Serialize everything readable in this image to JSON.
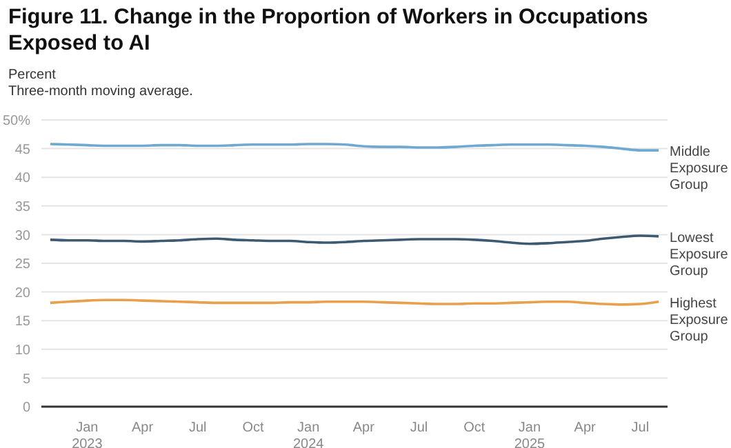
{
  "chart_data": {
    "type": "line",
    "title": "Figure 11. Change in the Proportion of Workers in Occupations Exposed to AI",
    "subtitle": "Three-month moving average.",
    "ylabel": "Percent",
    "x": [
      "2022-11",
      "2022-12",
      "2023-01",
      "2023-02",
      "2023-03",
      "2023-04",
      "2023-05",
      "2023-06",
      "2023-07",
      "2023-08",
      "2023-09",
      "2023-10",
      "2023-11",
      "2023-12",
      "2024-01",
      "2024-02",
      "2024-03",
      "2024-04",
      "2024-05",
      "2024-06",
      "2024-07",
      "2024-08",
      "2024-09",
      "2024-10",
      "2024-11",
      "2024-12",
      "2025-01",
      "2025-02",
      "2025-03",
      "2025-04",
      "2025-05",
      "2025-06",
      "2025-07",
      "2025-08"
    ],
    "series": [
      {
        "name": "Middle Exposure Group",
        "color": "#6fa8d0",
        "values": [
          45.8,
          45.7,
          45.6,
          45.5,
          45.5,
          45.5,
          45.6,
          45.6,
          45.5,
          45.5,
          45.6,
          45.7,
          45.7,
          45.7,
          45.8,
          45.8,
          45.7,
          45.4,
          45.3,
          45.3,
          45.2,
          45.2,
          45.3,
          45.5,
          45.6,
          45.7,
          45.7,
          45.7,
          45.6,
          45.5,
          45.3,
          45.0,
          44.7,
          44.7
        ]
      },
      {
        "name": "Lowest Exposure Group",
        "color": "#3d5a73",
        "values": [
          29.1,
          29.0,
          29.0,
          28.9,
          28.9,
          28.8,
          28.9,
          29.0,
          29.2,
          29.3,
          29.1,
          29.0,
          28.9,
          28.9,
          28.7,
          28.6,
          28.7,
          28.9,
          29.0,
          29.1,
          29.2,
          29.2,
          29.2,
          29.1,
          28.9,
          28.6,
          28.4,
          28.5,
          28.7,
          28.9,
          29.3,
          29.6,
          29.8,
          29.7
        ]
      },
      {
        "name": "Highest Exposure Group",
        "color": "#e8a04c",
        "values": [
          18.1,
          18.3,
          18.5,
          18.6,
          18.6,
          18.5,
          18.4,
          18.3,
          18.2,
          18.1,
          18.1,
          18.1,
          18.1,
          18.2,
          18.2,
          18.3,
          18.3,
          18.3,
          18.2,
          18.1,
          18.0,
          17.9,
          17.9,
          18.0,
          18.0,
          18.1,
          18.2,
          18.3,
          18.3,
          18.1,
          17.9,
          17.8,
          17.9,
          18.3
        ]
      }
    ],
    "xlim": [
      "2022-10-17",
      "2025-08-16"
    ],
    "xticks": [
      {
        "value": "2023-01",
        "label": "Jan 2023"
      },
      {
        "value": "2023-04",
        "label": "Apr"
      },
      {
        "value": "2023-07",
        "label": "Jul"
      },
      {
        "value": "2023-10",
        "label": "Oct"
      },
      {
        "value": "2024-01",
        "label": "Jan 2024"
      },
      {
        "value": "2024-04",
        "label": "Apr"
      },
      {
        "value": "2024-07",
        "label": "Jul"
      },
      {
        "value": "2024-10",
        "label": "Oct"
      },
      {
        "value": "2025-01",
        "label": "Jan 2025"
      },
      {
        "value": "2025-04",
        "label": "Apr"
      },
      {
        "value": "2025-07",
        "label": "Jul"
      }
    ],
    "ylim": [
      0,
      50
    ],
    "yticks": [
      0,
      5,
      10,
      15,
      20,
      25,
      30,
      35,
      40,
      45,
      {
        "value": 50,
        "label": "50%"
      }
    ],
    "grid": "y",
    "legend": false,
    "marker": "none",
    "line_style": "solid"
  }
}
